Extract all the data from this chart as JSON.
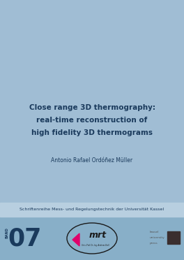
{
  "bg_color": "#a0bdd4",
  "series_bar_color": "#b8cfe0",
  "bottom_bar_color": "#88afc8",
  "title_line1": "Close range 3D thermography:",
  "title_line2": "real-time reconstruction of",
  "title_line3": "high fidelity 3D thermograms",
  "author": "Antonio Rafael Ordóñez Müller",
  "series_text": "Schriftenreihe Mess- und Regelungstechnik der Universität Kassel",
  "band_label": "BAND",
  "band_number": "07",
  "title_color": "#1a3a5c",
  "author_color": "#1a3a5c",
  "series_color": "#1a3a5c",
  "band_color": "#1a3a5c",
  "kassel_text1": "kassel",
  "kassel_text2": "university",
  "kassel_text3": "press",
  "mrt_subtext": "Univ.-Prof. Dr.-Ing. Andreas Kroll"
}
